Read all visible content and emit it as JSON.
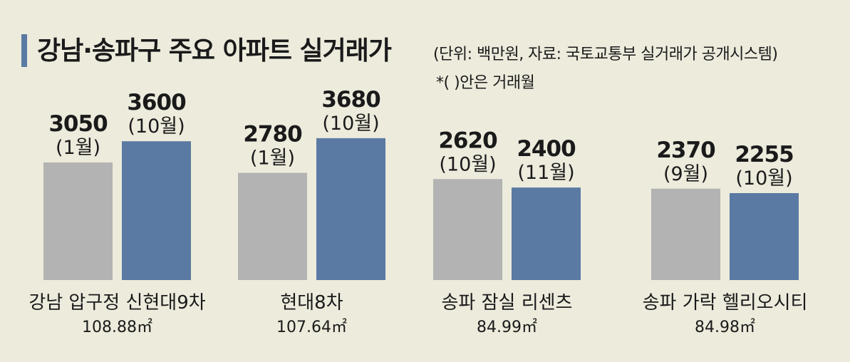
{
  "header": {
    "title": "강남·송파구 주요 아파트 실거래가",
    "unit_source": "(단위: 백만원, 자료: 국토교통부 실거래가 공개시스템)",
    "note": "*(    )안은 거래월"
  },
  "colors": {
    "background": "#ecebdc",
    "bar_gray": "#b3b3b3",
    "bar_blue": "#5a7aa3",
    "accent": "#5a7aa3"
  },
  "chart_data": {
    "type": "bar",
    "ylim": [
      0,
      4100
    ],
    "grid": false,
    "legend": "none",
    "groups": [
      {
        "category": "강남 압구정 신현대9차",
        "area": "108.88㎡",
        "bars": [
          {
            "value": 3050,
            "value_label": "3050",
            "month": "(1월)",
            "color": "gray"
          },
          {
            "value": 3600,
            "value_label": "3600",
            "month": "(10월)",
            "color": "blue"
          }
        ]
      },
      {
        "category": "현대8차",
        "area": "107.64㎡",
        "bars": [
          {
            "value": 2780,
            "value_label": "2780",
            "month": "(1월)",
            "color": "gray"
          },
          {
            "value": 3680,
            "value_label": "3680",
            "month": "(10월)",
            "color": "blue"
          }
        ]
      },
      {
        "category": "송파 잠실 리센츠",
        "area": "84.99㎡",
        "bars": [
          {
            "value": 2620,
            "value_label": "2620",
            "month": "(10월)",
            "color": "gray"
          },
          {
            "value": 2400,
            "value_label": "2400",
            "month": "(11월)",
            "color": "blue"
          }
        ]
      },
      {
        "category": "송파 가락 헬리오시티",
        "area": "84.98㎡",
        "bars": [
          {
            "value": 2370,
            "value_label": "2370",
            "month": "(9월)",
            "color": "gray"
          },
          {
            "value": 2255,
            "value_label": "2255",
            "month": "(10월)",
            "color": "blue"
          }
        ]
      }
    ]
  }
}
